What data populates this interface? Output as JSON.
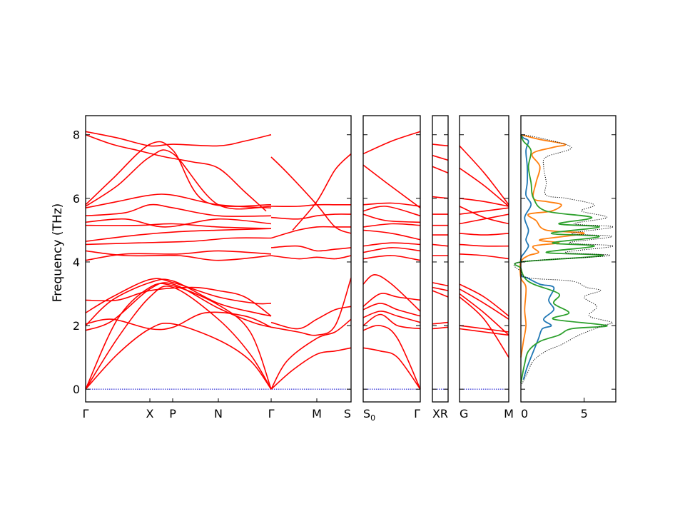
{
  "chart_data": {
    "type": "line",
    "ylabel": "Frequency (THz)",
    "ylim": [
      -0.4,
      8.6
    ],
    "yticks": [
      0,
      2,
      4,
      6,
      8
    ],
    "band_color": "#ff0000",
    "zero_line_color": "#0000cc",
    "band_panels": [
      {
        "labels": [
          "Γ",
          "X",
          "P",
          "N",
          "Γ",
          "M",
          "S"
        ],
        "label_positions": [
          0,
          0.242,
          0.328,
          0.5,
          0.699,
          0.871,
          1.0
        ]
      },
      {
        "labels": [
          "S0",
          "Γ"
        ],
        "label_positions": [
          0,
          1.0
        ]
      },
      {
        "labels": [
          "X",
          "R"
        ],
        "label_positions": [
          0,
          1.0
        ]
      },
      {
        "labels": [
          "G",
          "M"
        ],
        "label_positions": [
          0,
          1.0
        ]
      }
    ],
    "dos_panel": {
      "xticks": [
        0,
        5
      ],
      "xlim": [
        0,
        7.5
      ],
      "series": [
        {
          "color": "#1f77b4",
          "style": "solid",
          "points": [
            [
              0.2,
              0.3
            ],
            [
              0.5,
              0.7
            ],
            [
              1.0,
              1.2
            ],
            [
              1.4,
              1.6
            ],
            [
              1.7,
              1.9
            ],
            [
              2.4,
              2.0
            ],
            [
              1.8,
              2.2
            ],
            [
              2.6,
              2.5
            ],
            [
              2.2,
              2.8
            ],
            [
              2.6,
              3.2
            ],
            [
              1.5,
              3.3
            ],
            [
              0.5,
              3.5
            ],
            [
              0,
              3.6
            ],
            [
              0,
              4.1
            ],
            [
              0.3,
              4.3
            ],
            [
              0.6,
              4.5
            ],
            [
              0.4,
              4.7
            ],
            [
              0.6,
              5.0
            ],
            [
              0.3,
              5.4
            ],
            [
              0.8,
              5.8
            ],
            [
              0.4,
              6.1
            ],
            [
              0.5,
              6.5
            ],
            [
              0.5,
              7.0
            ],
            [
              0.4,
              7.5
            ],
            [
              0.6,
              7.8
            ],
            [
              0.2,
              7.9
            ],
            [
              0,
              8.0
            ]
          ]
        },
        {
          "color": "#ff7f0e",
          "style": "solid",
          "points": [
            [
              0,
              1.0
            ],
            [
              0.2,
              1.5
            ],
            [
              0.4,
              2.0
            ],
            [
              0.3,
              2.5
            ],
            [
              0.4,
              3.2
            ],
            [
              0,
              3.5
            ],
            [
              0,
              4.0
            ],
            [
              0.6,
              4.2
            ],
            [
              1.4,
              4.3
            ],
            [
              1.0,
              4.5
            ],
            [
              3.0,
              4.6
            ],
            [
              1.5,
              4.7
            ],
            [
              5.0,
              4.9
            ],
            [
              2.0,
              5.0
            ],
            [
              1.2,
              5.3
            ],
            [
              0.6,
              5.5
            ],
            [
              2.4,
              5.6
            ],
            [
              3.2,
              5.8
            ],
            [
              2.0,
              5.9
            ],
            [
              1.0,
              6.0
            ],
            [
              1.2,
              6.5
            ],
            [
              1.5,
              7.0
            ],
            [
              0.9,
              7.4
            ],
            [
              2.5,
              7.6
            ],
            [
              3.5,
              7.7
            ],
            [
              1.5,
              7.85
            ],
            [
              0,
              8.0
            ]
          ]
        },
        {
          "color": "#2ca02c",
          "style": "solid",
          "points": [
            [
              0,
              0.2
            ],
            [
              0.3,
              0.8
            ],
            [
              0.6,
              1.2
            ],
            [
              1.5,
              1.5
            ],
            [
              3.0,
              1.7
            ],
            [
              4.0,
              1.9
            ],
            [
              6.8,
              2.0
            ],
            [
              2.6,
              2.2
            ],
            [
              3.8,
              2.4
            ],
            [
              2.6,
              2.7
            ],
            [
              3.0,
              3.0
            ],
            [
              1.0,
              3.3
            ],
            [
              0.3,
              3.5
            ],
            [
              0,
              3.8
            ],
            [
              0,
              4.0
            ],
            [
              6.5,
              4.2
            ],
            [
              2.0,
              4.3
            ],
            [
              5.8,
              4.5
            ],
            [
              2.5,
              4.6
            ],
            [
              6.2,
              4.8
            ],
            [
              2.4,
              4.9
            ],
            [
              6.2,
              5.1
            ],
            [
              3.0,
              5.2
            ],
            [
              5.6,
              5.4
            ],
            [
              2.0,
              5.6
            ],
            [
              1.0,
              6.0
            ],
            [
              0.8,
              6.5
            ],
            [
              0.6,
              7.0
            ],
            [
              0.8,
              7.5
            ],
            [
              0.2,
              7.8
            ],
            [
              0,
              8.0
            ]
          ]
        },
        {
          "color": "#000000",
          "style": "dotted",
          "points": [
            [
              0,
              0.1
            ],
            [
              0.5,
              0.5
            ],
            [
              1.0,
              0.9
            ],
            [
              2.0,
              1.2
            ],
            [
              3.2,
              1.4
            ],
            [
              4.6,
              1.7
            ],
            [
              6.5,
              2.0
            ],
            [
              7.2,
              2.1
            ],
            [
              5.4,
              2.3
            ],
            [
              6.0,
              2.6
            ],
            [
              5.0,
              2.9
            ],
            [
              6.3,
              3.1
            ],
            [
              5.2,
              3.2
            ],
            [
              4.0,
              3.4
            ],
            [
              0.6,
              3.5
            ],
            [
              0,
              3.7
            ],
            [
              0,
              4.0
            ],
            [
              7.0,
              4.2
            ],
            [
              3.5,
              4.3
            ],
            [
              7.3,
              4.5
            ],
            [
              3.8,
              4.6
            ],
            [
              7.2,
              4.8
            ],
            [
              4.0,
              4.9
            ],
            [
              7.3,
              5.1
            ],
            [
              4.2,
              5.2
            ],
            [
              6.8,
              5.4
            ],
            [
              4.8,
              5.6
            ],
            [
              5.8,
              5.8
            ],
            [
              3.6,
              6.0
            ],
            [
              2.0,
              6.1
            ],
            [
              2.0,
              6.5
            ],
            [
              1.8,
              7.0
            ],
            [
              2.0,
              7.3
            ],
            [
              4.0,
              7.6
            ],
            [
              1.5,
              7.9
            ],
            [
              0,
              8.0
            ]
          ]
        }
      ]
    }
  }
}
